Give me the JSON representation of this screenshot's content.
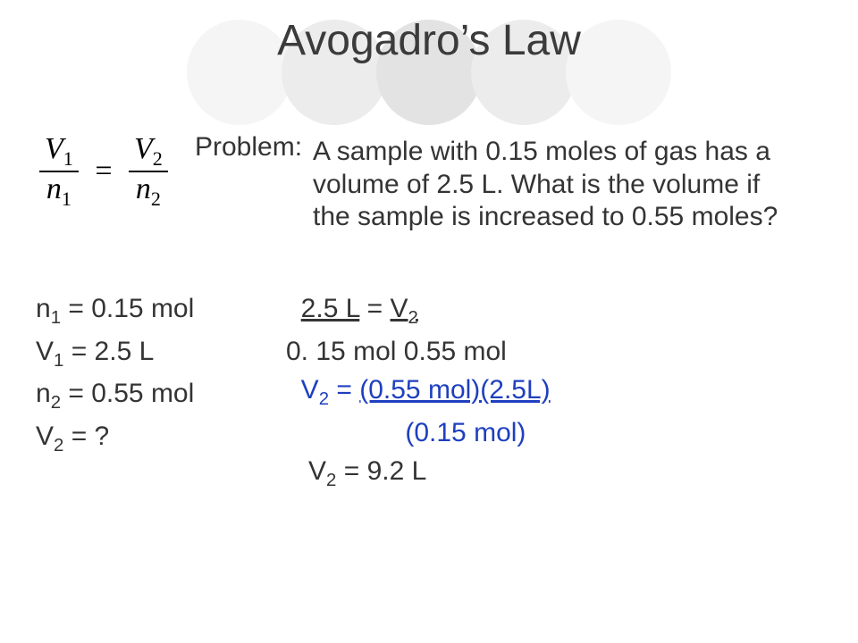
{
  "colors": {
    "background": "#ffffff",
    "text": "#343434",
    "title": "#3b3b3b",
    "accent_blue": "#1f3fbf",
    "circle_light": "#f5f5f5",
    "circle_mid": "#ececec",
    "circle_dark": "#e3e3e3"
  },
  "title": "Avogadro’s Law",
  "formula": {
    "lhs_num": "V",
    "lhs_num_sub": "1",
    "lhs_den": "n",
    "lhs_den_sub": "1",
    "rhs_num": "V",
    "rhs_num_sub": "2",
    "rhs_den": "n",
    "rhs_den_sub": "2",
    "eq": "="
  },
  "problem_label": "Problem:",
  "problem_text": "A sample with 0.15 moles of gas has a volume of 2.5 L.  What is the volume if the sample is increased to 0.55 moles?",
  "givens": {
    "l1_a": "n",
    "l1_s": "1",
    "l1_b": " = 0.15 mol",
    "l2_a": "V",
    "l2_s": "1",
    "l2_b": " = 2.5 L",
    "l3_a": "n",
    "l3_s": "2",
    "l3_b": " = 0.55 mol",
    "l4_a": "V",
    "l4_s": "2",
    "l4_b": " = ?"
  },
  "work": {
    "r1_left": "2.5 L",
    "r1_mid": "    =    ",
    "r1_var": "V",
    "r1_sub": "2",
    "r2_left_pre": "0.",
    "r2_left": "15 mol",
    "r2_gap": "    ",
    "r2_right": "0.55 mol",
    "r3_var": "V",
    "r3_sub": "2",
    "r3_mid": "  =  ",
    "r3_frac_num": "(0.55 mol)(2.5L)",
    "r4_frac_den": "(0.15 mol)",
    "r5_var": "V",
    "r5_sub": "2",
    "r5_mid": "  =  ",
    "r5_ans": "9.2 L"
  }
}
